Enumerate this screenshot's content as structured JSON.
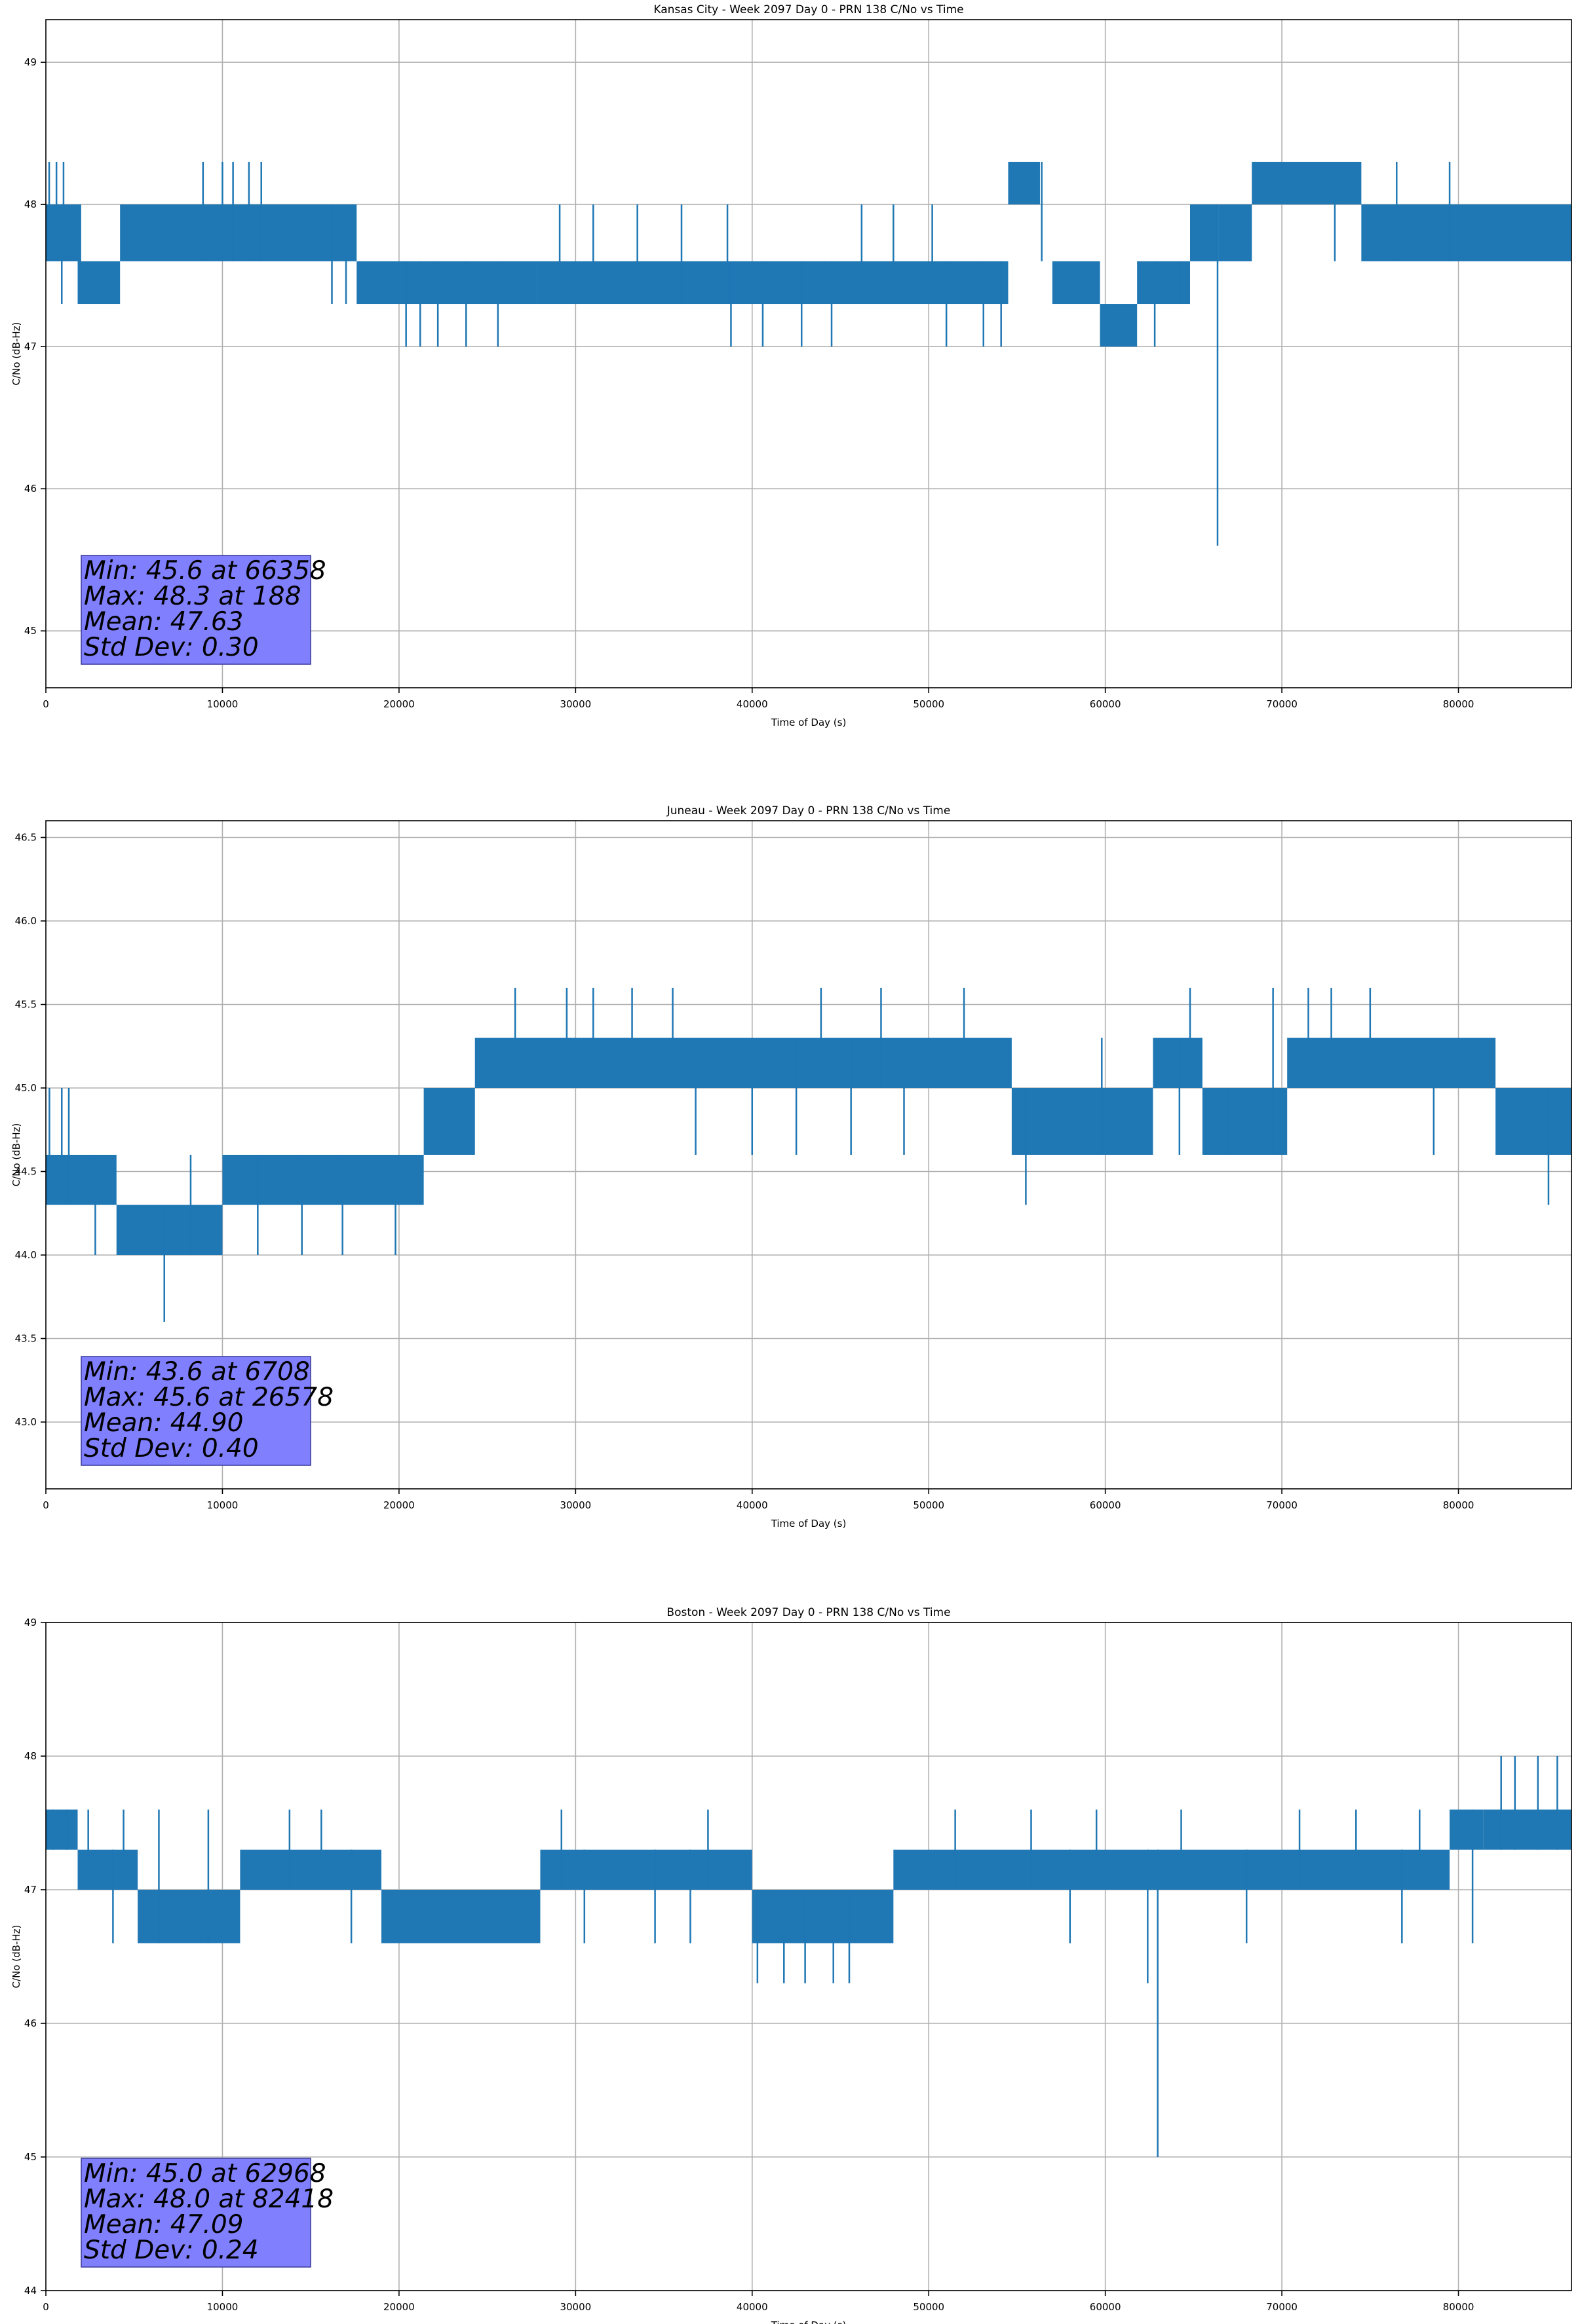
{
  "chart_data": [
    {
      "type": "line",
      "title": "Kansas City - Week 2097 Day 0 - PRN 138 C/No vs Time",
      "xlabel": "Time of Day (s)",
      "ylabel": "C/No (dB-Hz)",
      "xlim": [
        0,
        86400
      ],
      "ylim": [
        44.6,
        49.3
      ],
      "xticks": [
        0,
        10000,
        20000,
        30000,
        40000,
        50000,
        60000,
        70000,
        80000
      ],
      "yticks": [
        45,
        46,
        47,
        48,
        49
      ],
      "ytick_decimals": 0,
      "grid": true,
      "line_color": "#1f77b4",
      "stats_box_color": "#8080ff",
      "stats": [
        "Min: 45.6 at 66358",
        "Max: 48.3 at 188",
        "Mean: 47.63",
        "Std Dev: 0.30"
      ],
      "bands": [
        {
          "x0": 0,
          "x1": 2000,
          "low": 47.6,
          "high": 48.0
        },
        {
          "x0": 1800,
          "x1": 4200,
          "low": 47.3,
          "high": 47.6
        },
        {
          "x0": 4200,
          "x1": 17600,
          "low": 47.6,
          "high": 48.0
        },
        {
          "x0": 17600,
          "x1": 27800,
          "low": 47.3,
          "high": 47.6
        },
        {
          "x0": 27800,
          "x1": 54500,
          "low": 47.3,
          "high": 47.6
        },
        {
          "x0": 54500,
          "x1": 56300,
          "low": 48.0,
          "high": 48.3
        },
        {
          "x0": 57000,
          "x1": 59700,
          "low": 47.3,
          "high": 47.6
        },
        {
          "x0": 59700,
          "x1": 61800,
          "low": 47.0,
          "high": 47.3
        },
        {
          "x0": 61800,
          "x1": 64800,
          "low": 47.3,
          "high": 47.6
        },
        {
          "x0": 64800,
          "x1": 66400,
          "low": 47.6,
          "high": 48.0
        },
        {
          "x0": 66400,
          "x1": 68300,
          "low": 47.6,
          "high": 48.0
        },
        {
          "x0": 68300,
          "x1": 74500,
          "low": 48.0,
          "high": 48.3
        },
        {
          "x0": 74500,
          "x1": 86400,
          "low": 47.6,
          "high": 48.0
        }
      ],
      "spikes": [
        {
          "x": 188,
          "high": 48.3
        },
        {
          "x": 600,
          "high": 48.3
        },
        {
          "x": 900,
          "low": 47.3
        },
        {
          "x": 1000,
          "high": 48.3
        },
        {
          "x": 8900,
          "high": 48.3
        },
        {
          "x": 10000,
          "high": 48.3
        },
        {
          "x": 10600,
          "high": 48.3
        },
        {
          "x": 11500,
          "high": 48.3
        },
        {
          "x": 12200,
          "high": 48.3
        },
        {
          "x": 16200,
          "low": 47.3
        },
        {
          "x": 17000,
          "low": 47.3
        },
        {
          "x": 20400,
          "low": 47.0
        },
        {
          "x": 21200,
          "low": 47.0
        },
        {
          "x": 22200,
          "low": 47.0
        },
        {
          "x": 23800,
          "low": 47.0
        },
        {
          "x": 25600,
          "low": 47.0
        },
        {
          "x": 29100,
          "high": 48.0
        },
        {
          "x": 31000,
          "high": 48.0
        },
        {
          "x": 33500,
          "high": 48.0
        },
        {
          "x": 36000,
          "high": 48.0
        },
        {
          "x": 38600,
          "high": 48.0
        },
        {
          "x": 38800,
          "low": 47.0
        },
        {
          "x": 40600,
          "low": 47.0
        },
        {
          "x": 42800,
          "low": 47.0
        },
        {
          "x": 44500,
          "low": 47.0
        },
        {
          "x": 46200,
          "high": 48.0
        },
        {
          "x": 48000,
          "high": 48.0
        },
        {
          "x": 50200,
          "high": 48.0
        },
        {
          "x": 51000,
          "low": 47.0
        },
        {
          "x": 53100,
          "low": 47.0
        },
        {
          "x": 54100,
          "low": 47.0
        },
        {
          "x": 56400,
          "low": 47.6,
          "high": 48.3
        },
        {
          "x": 62800,
          "low": 47.0
        },
        {
          "x": 64200,
          "low": 47.3
        },
        {
          "x": 66358,
          "low": 45.6
        },
        {
          "x": 73000,
          "low": 47.6
        },
        {
          "x": 76500,
          "high": 48.3
        },
        {
          "x": 79500,
          "high": 48.3
        }
      ]
    },
    {
      "type": "line",
      "title": "Juneau - Week 2097 Day 0 - PRN 138 C/No vs Time",
      "xlabel": "Time of Day (s)",
      "ylabel": "C/No (dB-Hz)",
      "xlim": [
        0,
        86400
      ],
      "ylim": [
        42.6,
        46.6
      ],
      "xticks": [
        0,
        10000,
        20000,
        30000,
        40000,
        50000,
        60000,
        70000,
        80000
      ],
      "yticks": [
        43.0,
        43.5,
        44.0,
        44.5,
        45.0,
        45.5,
        46.0,
        46.5
      ],
      "ytick_decimals": 1,
      "grid": true,
      "line_color": "#1f77b4",
      "stats_box_color": "#8080ff",
      "stats": [
        "Min: 43.6 at 6708",
        "Max: 45.6 at 26578",
        "Mean: 44.90",
        "Std Dev: 0.40"
      ],
      "bands": [
        {
          "x0": 0,
          "x1": 4000,
          "low": 44.3,
          "high": 44.6
        },
        {
          "x0": 4000,
          "x1": 10000,
          "low": 44.0,
          "high": 44.3
        },
        {
          "x0": 10000,
          "x1": 21400,
          "low": 44.3,
          "high": 44.6
        },
        {
          "x0": 21400,
          "x1": 24300,
          "low": 44.6,
          "high": 45.0
        },
        {
          "x0": 24300,
          "x1": 54700,
          "low": 45.0,
          "high": 45.3
        },
        {
          "x0": 54700,
          "x1": 62700,
          "low": 44.6,
          "high": 45.0
        },
        {
          "x0": 62700,
          "x1": 65500,
          "low": 45.0,
          "high": 45.3
        },
        {
          "x0": 65500,
          "x1": 70300,
          "low": 44.6,
          "high": 45.0
        },
        {
          "x0": 70300,
          "x1": 82100,
          "low": 45.0,
          "high": 45.3
        },
        {
          "x0": 82100,
          "x1": 86400,
          "low": 44.6,
          "high": 45.0
        }
      ],
      "spikes": [
        {
          "x": 200,
          "high": 45.0
        },
        {
          "x": 900,
          "high": 45.0
        },
        {
          "x": 1300,
          "high": 45.0
        },
        {
          "x": 2800,
          "low": 44.0
        },
        {
          "x": 6708,
          "low": 43.6
        },
        {
          "x": 8200,
          "high": 44.6
        },
        {
          "x": 12000,
          "low": 44.0
        },
        {
          "x": 14500,
          "low": 44.0
        },
        {
          "x": 16800,
          "low": 44.0
        },
        {
          "x": 19800,
          "low": 44.0
        },
        {
          "x": 26578,
          "high": 45.6
        },
        {
          "x": 29500,
          "high": 45.6
        },
        {
          "x": 31000,
          "high": 45.6
        },
        {
          "x": 33200,
          "high": 45.6
        },
        {
          "x": 35500,
          "high": 45.6
        },
        {
          "x": 36800,
          "low": 44.6
        },
        {
          "x": 40000,
          "low": 44.6
        },
        {
          "x": 42500,
          "low": 44.6
        },
        {
          "x": 43900,
          "high": 45.6
        },
        {
          "x": 45600,
          "low": 44.6
        },
        {
          "x": 47300,
          "high": 45.6
        },
        {
          "x": 48600,
          "low": 44.6
        },
        {
          "x": 52000,
          "high": 45.6
        },
        {
          "x": 55500,
          "low": 44.3
        },
        {
          "x": 59800,
          "high": 45.3
        },
        {
          "x": 64200,
          "low": 44.6
        },
        {
          "x": 64800,
          "high": 45.6
        },
        {
          "x": 67000,
          "low": 44.6
        },
        {
          "x": 69500,
          "high": 45.6
        },
        {
          "x": 71500,
          "high": 45.6
        },
        {
          "x": 72800,
          "high": 45.6
        },
        {
          "x": 75000,
          "high": 45.6
        },
        {
          "x": 78600,
          "low": 44.6
        },
        {
          "x": 83300,
          "low": 44.6
        },
        {
          "x": 85100,
          "low": 44.3
        }
      ]
    },
    {
      "type": "line",
      "title": "Boston - Week 2097 Day 0 - PRN 138 C/No vs Time",
      "xlabel": "Time of Day (s)",
      "ylabel": "C/No (dB-Hz)",
      "xlim": [
        0,
        86400
      ],
      "ylim": [
        44,
        49
      ],
      "xticks": [
        0,
        10000,
        20000,
        30000,
        40000,
        50000,
        60000,
        70000,
        80000
      ],
      "yticks": [
        44,
        45,
        46,
        47,
        48,
        49
      ],
      "ytick_decimals": 0,
      "grid": true,
      "line_color": "#1f77b4",
      "stats_box_color": "#8080ff",
      "stats": [
        "Min: 45.0 at 62968",
        "Max: 48.0 at 82418",
        "Mean: 47.09",
        "Std Dev: 0.24"
      ],
      "bands": [
        {
          "x0": 0,
          "x1": 1800,
          "low": 47.3,
          "high": 47.6
        },
        {
          "x0": 1800,
          "x1": 3600,
          "low": 47.0,
          "high": 47.3
        },
        {
          "x0": 3600,
          "x1": 5200,
          "low": 47.0,
          "high": 47.3
        },
        {
          "x0": 5200,
          "x1": 11000,
          "low": 46.6,
          "high": 47.0
        },
        {
          "x0": 11000,
          "x1": 19000,
          "low": 47.0,
          "high": 47.3
        },
        {
          "x0": 19000,
          "x1": 28000,
          "low": 46.6,
          "high": 47.0
        },
        {
          "x0": 28000,
          "x1": 40000,
          "low": 47.0,
          "high": 47.3
        },
        {
          "x0": 40000,
          "x1": 48000,
          "low": 46.6,
          "high": 47.0
        },
        {
          "x0": 48000,
          "x1": 79500,
          "low": 47.0,
          "high": 47.3
        },
        {
          "x0": 79500,
          "x1": 81400,
          "low": 47.3,
          "high": 47.6
        },
        {
          "x0": 81400,
          "x1": 86400,
          "low": 47.3,
          "high": 47.6
        }
      ],
      "spikes": [
        {
          "x": 400,
          "high": 47.6
        },
        {
          "x": 1200,
          "high": 47.6
        },
        {
          "x": 2400,
          "high": 47.6
        },
        {
          "x": 3800,
          "low": 46.6
        },
        {
          "x": 4400,
          "high": 47.6
        },
        {
          "x": 6400,
          "high": 47.6
        },
        {
          "x": 9200,
          "high": 47.6
        },
        {
          "x": 13800,
          "high": 47.6
        },
        {
          "x": 15600,
          "high": 47.6
        },
        {
          "x": 17300,
          "low": 46.6
        },
        {
          "x": 29200,
          "high": 47.6
        },
        {
          "x": 30500,
          "low": 46.6
        },
        {
          "x": 34500,
          "low": 46.6
        },
        {
          "x": 36500,
          "low": 46.6
        },
        {
          "x": 37500,
          "high": 47.6
        },
        {
          "x": 40300,
          "low": 46.3
        },
        {
          "x": 41800,
          "low": 46.3
        },
        {
          "x": 43000,
          "low": 46.3
        },
        {
          "x": 44600,
          "low": 46.3
        },
        {
          "x": 45500,
          "low": 46.3
        },
        {
          "x": 51500,
          "high": 47.6
        },
        {
          "x": 55800,
          "high": 47.6
        },
        {
          "x": 58000,
          "low": 46.6
        },
        {
          "x": 59500,
          "high": 47.6
        },
        {
          "x": 62400,
          "low": 46.3
        },
        {
          "x": 62968,
          "low": 45.0
        },
        {
          "x": 64300,
          "high": 47.6
        },
        {
          "x": 68000,
          "low": 46.6
        },
        {
          "x": 71000,
          "high": 47.6
        },
        {
          "x": 74200,
          "high": 47.6
        },
        {
          "x": 76800,
          "low": 46.6
        },
        {
          "x": 77800,
          "high": 47.6
        },
        {
          "x": 80800,
          "low": 46.6
        },
        {
          "x": 82418,
          "high": 48.0
        },
        {
          "x": 83200,
          "high": 48.0
        },
        {
          "x": 84500,
          "high": 48.0
        },
        {
          "x": 85600,
          "high": 48.0
        }
      ]
    }
  ]
}
